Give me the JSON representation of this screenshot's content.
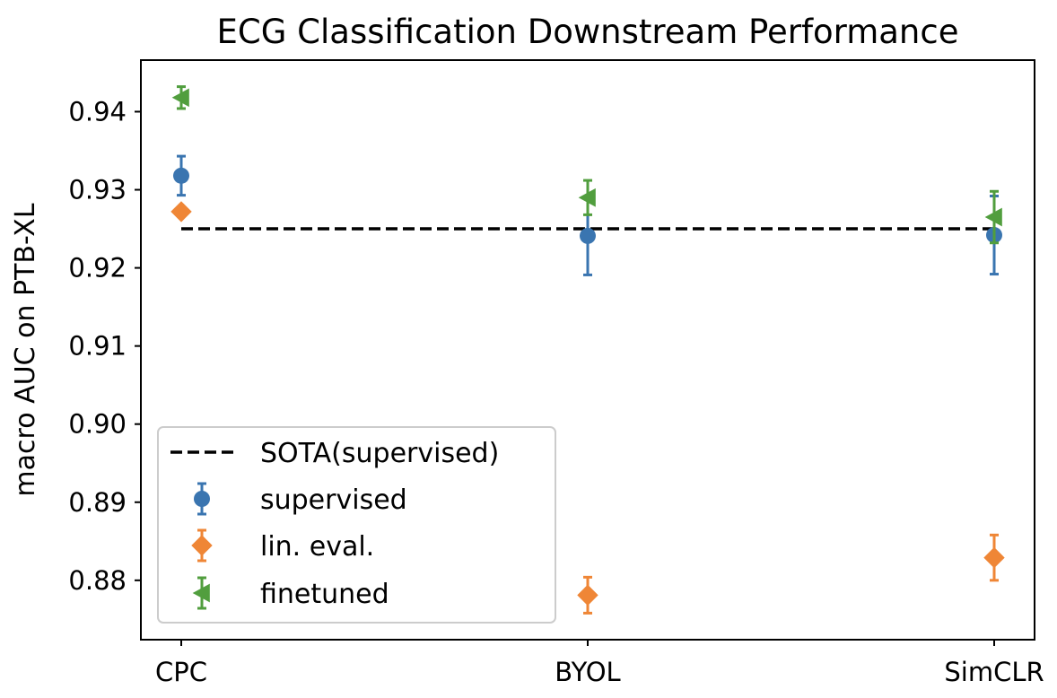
{
  "chart_data": {
    "type": "scatter",
    "title": "ECG Classification Downstream Performance",
    "xlabel": "",
    "ylabel": "macro AUC on PTB-XL",
    "categories": [
      "CPC",
      "BYOL",
      "SimCLR"
    ],
    "ylim": [
      0.8724,
      0.9466
    ],
    "yticks": [
      0.88,
      0.89,
      0.9,
      0.91,
      0.92,
      0.93,
      0.94
    ],
    "ytick_labels": [
      "0.88",
      "0.89",
      "0.90",
      "0.91",
      "0.92",
      "0.93",
      "0.94"
    ],
    "grid": false,
    "legend_position": "lower-left",
    "reference_line": {
      "name": "SOTA(supervised)",
      "value": 0.925,
      "color": "#000000",
      "style": "dashed"
    },
    "series": [
      {
        "name": "supervised",
        "marker": "circle",
        "color": "#3a75b0",
        "offset": 0.0,
        "values": [
          0.9318,
          0.9241,
          0.9242
        ],
        "errors": [
          0.0025,
          0.005,
          0.005
        ]
      },
      {
        "name": "lin. eval.",
        "marker": "diamond",
        "color": "#ef8636",
        "offset": 0.0,
        "values": [
          0.9272,
          0.8781,
          0.8829
        ],
        "errors": [
          0.0,
          0.0023,
          0.0029
        ]
      },
      {
        "name": "finetuned",
        "marker": "triangle-left",
        "color": "#519e3e",
        "offset": 0.0,
        "values": [
          0.9418,
          0.929,
          0.9265
        ],
        "errors": [
          0.0014,
          0.0022,
          0.0033
        ]
      }
    ]
  }
}
